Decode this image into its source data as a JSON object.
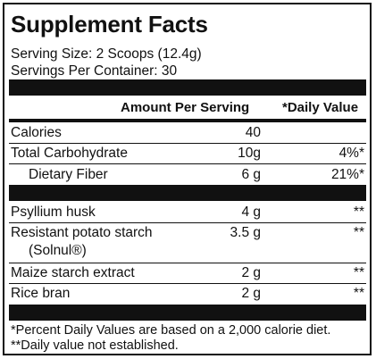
{
  "title": "Supplement Facts",
  "serving_size": "Serving Size: 2 Scoops (12.4g)",
  "servings_per_container": "Servings Per Container: 30",
  "headers": {
    "amount": "Amount Per Serving",
    "daily_value": "*Daily Value"
  },
  "rows": [
    {
      "name": "Calories",
      "amount": "40",
      "dv": ""
    },
    {
      "name": "Total Carbohydrate",
      "amount": "10g",
      "dv": "4%*"
    },
    {
      "name": "Dietary Fiber",
      "amount": "6 g",
      "dv": "21%*"
    },
    {
      "name": "Psyllium husk",
      "amount": "4 g",
      "dv": "**"
    },
    {
      "name": "Resistant potato starch",
      "name2": "(Solnul®)",
      "amount": "3.5 g",
      "dv": "**"
    },
    {
      "name": "Maize starch extract",
      "amount": "2 g",
      "dv": "**"
    },
    {
      "name": "Rice bran",
      "amount": "2 g",
      "dv": "**"
    }
  ],
  "footnotes": [
    "*Percent Daily Values are based on a 2,000 calorie diet.",
    "**Daily value not established."
  ]
}
